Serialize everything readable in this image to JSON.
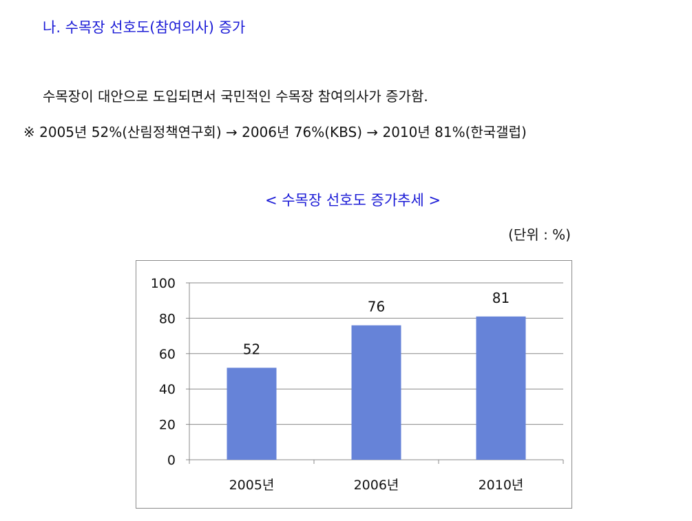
{
  "heading": "나. 수목장 선호도(참여의사) 증가",
  "paragraph": "수목장이 대안으로 도입되면서 국민적인 수목장 참여의사가 증가함.",
  "note": "※ 2005년 52%(산림정책연구회) → 2006년 76%(KBS) → 2010년 81%(한국갤럽)",
  "chart_title": "< 수목장 선호도 증가추세 >",
  "unit_label": "(단위 : %)",
  "colors": {
    "heading": "#1a1ad6",
    "bar": "#6683d8",
    "gridline": "#888888"
  },
  "chart_data": {
    "type": "bar",
    "categories": [
      "2005년",
      "2006년",
      "2010년"
    ],
    "values": [
      52,
      76,
      81
    ],
    "data_labels": [
      "52",
      "76",
      "81"
    ],
    "ylim": [
      0,
      100
    ],
    "yticks": [
      0,
      20,
      40,
      60,
      80,
      100
    ],
    "grid": true,
    "legend": "none"
  }
}
